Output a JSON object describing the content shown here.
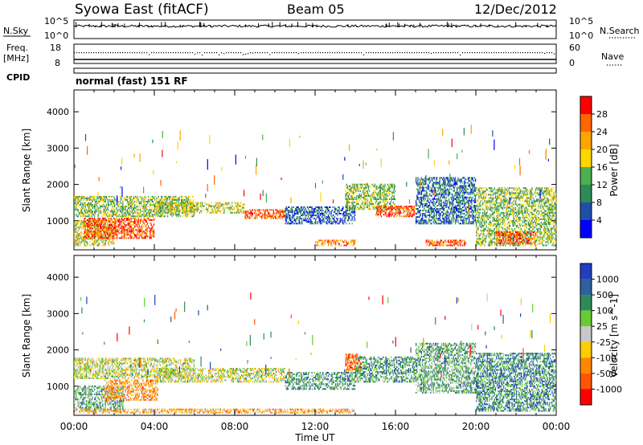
{
  "header": {
    "title": "Syowa East (fitACF)",
    "beam": "Beam 05",
    "date": "12/Dec/2012"
  },
  "top_panels": {
    "nsky_label": "N.Sky",
    "nsky_ticks": [
      "10^5",
      "10^0"
    ],
    "nsearch_label": "N.Search",
    "nsearch_ticks": [
      "10^5",
      "10^0"
    ],
    "freq_label": "Freq.",
    "freq_unit": "[MHz]",
    "freq_ticks": [
      "18",
      "8"
    ],
    "nave_label": "Nave",
    "nave_ticks": [
      "60",
      "0"
    ],
    "cpid_label": "CPID",
    "cpid_text": "normal (fast) 151 RF"
  },
  "colors": {
    "power_scale": [
      "#0000ff",
      "#1f4fa8",
      "#2e8b57",
      "#4caf50",
      "#ffd700",
      "#ffa500",
      "#ff6600",
      "#ff0000"
    ],
    "velocity_scale": [
      "#1f3fbf",
      "#2f5f9f",
      "#2e8b57",
      "#66cc33",
      "#c8c8c8",
      "#ffcc00",
      "#ff8800",
      "#ff5500",
      "#ff0000"
    ]
  },
  "chart_data": [
    {
      "type": "heatmap",
      "panel": "power",
      "ylabel": "Slant Range [km]",
      "yticks": [
        "1000",
        "2000",
        "3000",
        "4000"
      ],
      "ylim": [
        200,
        4600
      ],
      "xticks": [
        "00:00",
        "04:00",
        "08:00",
        "12:00",
        "16:00",
        "20:00",
        "00:00"
      ],
      "xlim": [
        0,
        24
      ],
      "colorbar_label": "Power [dB]",
      "colorbar_ticks": [
        "4",
        "8",
        "12",
        "16",
        "20",
        "24",
        "28"
      ],
      "regions": [
        {
          "t0": 0.0,
          "t1": 2.0,
          "r0": 300,
          "r1": 1000,
          "level": 0.55
        },
        {
          "t0": 0.5,
          "t1": 4.0,
          "r0": 500,
          "r1": 1100,
          "level": 0.85
        },
        {
          "t0": 0.0,
          "t1": 6.0,
          "r0": 1100,
          "r1": 1700,
          "level": 0.45
        },
        {
          "t0": 4.0,
          "t1": 8.5,
          "r0": 1200,
          "r1": 1500,
          "level": 0.55
        },
        {
          "t0": 8.5,
          "t1": 10.5,
          "r0": 1050,
          "r1": 1300,
          "level": 0.85
        },
        {
          "t0": 10.5,
          "t1": 14.0,
          "r0": 900,
          "r1": 1400,
          "level": 0.2
        },
        {
          "t0": 13.5,
          "t1": 16.0,
          "r0": 1300,
          "r1": 2000,
          "level": 0.45
        },
        {
          "t0": 15.0,
          "t1": 17.0,
          "r0": 1100,
          "r1": 1400,
          "level": 0.85
        },
        {
          "t0": 17.0,
          "t1": 20.0,
          "r0": 900,
          "r1": 2200,
          "level": 0.25
        },
        {
          "t0": 20.0,
          "t1": 24.0,
          "r0": 300,
          "r1": 1900,
          "level": 0.45
        },
        {
          "t0": 21.0,
          "t1": 23.0,
          "r0": 350,
          "r1": 700,
          "level": 0.85
        },
        {
          "t0": 12.0,
          "t1": 14.0,
          "r0": 300,
          "r1": 500,
          "level": 0.75
        },
        {
          "t0": 17.5,
          "t1": 19.5,
          "r0": 300,
          "r1": 500,
          "level": 0.85
        }
      ]
    },
    {
      "type": "heatmap",
      "panel": "velocity",
      "ylabel": "Slant Range [km]",
      "yticks": [
        "1000",
        "2000",
        "3000",
        "4000"
      ],
      "ylim": [
        200,
        4600
      ],
      "xticks": [
        "00:00",
        "04:00",
        "08:00",
        "12:00",
        "16:00",
        "20:00",
        "00:00"
      ],
      "xlim": [
        0,
        24
      ],
      "xlabel": "Time UT",
      "colorbar_label": "Velocity [m s^-1]",
      "colorbar_ticks": [
        "1000",
        "500",
        "100",
        "25",
        "-25",
        "-100",
        "-500",
        "-1000"
      ],
      "regions": [
        {
          "t0": 0.0,
          "t1": 2.5,
          "r0": 300,
          "r1": 1000,
          "level": 0.35
        },
        {
          "t0": 1.5,
          "t1": 4.2,
          "r0": 600,
          "r1": 1200,
          "level": 0.7
        },
        {
          "t0": 0.0,
          "t1": 6.0,
          "r0": 1200,
          "r1": 1800,
          "level": 0.5
        },
        {
          "t0": 4.0,
          "t1": 10.5,
          "r0": 1100,
          "r1": 1500,
          "level": 0.5
        },
        {
          "t0": 10.5,
          "t1": 14.0,
          "r0": 900,
          "r1": 1400,
          "level": 0.3
        },
        {
          "t0": 13.5,
          "t1": 14.3,
          "r0": 1400,
          "r1": 1900,
          "level": 0.8
        },
        {
          "t0": 14.0,
          "t1": 17.0,
          "r0": 1100,
          "r1": 1800,
          "level": 0.3
        },
        {
          "t0": 17.0,
          "t1": 20.0,
          "r0": 800,
          "r1": 2200,
          "level": 0.35
        },
        {
          "t0": 20.0,
          "t1": 24.0,
          "r0": 300,
          "r1": 1900,
          "level": 0.25
        },
        {
          "t0": 0.0,
          "t1": 14.0,
          "r0": 250,
          "r1": 400,
          "level": 0.65
        }
      ]
    }
  ]
}
